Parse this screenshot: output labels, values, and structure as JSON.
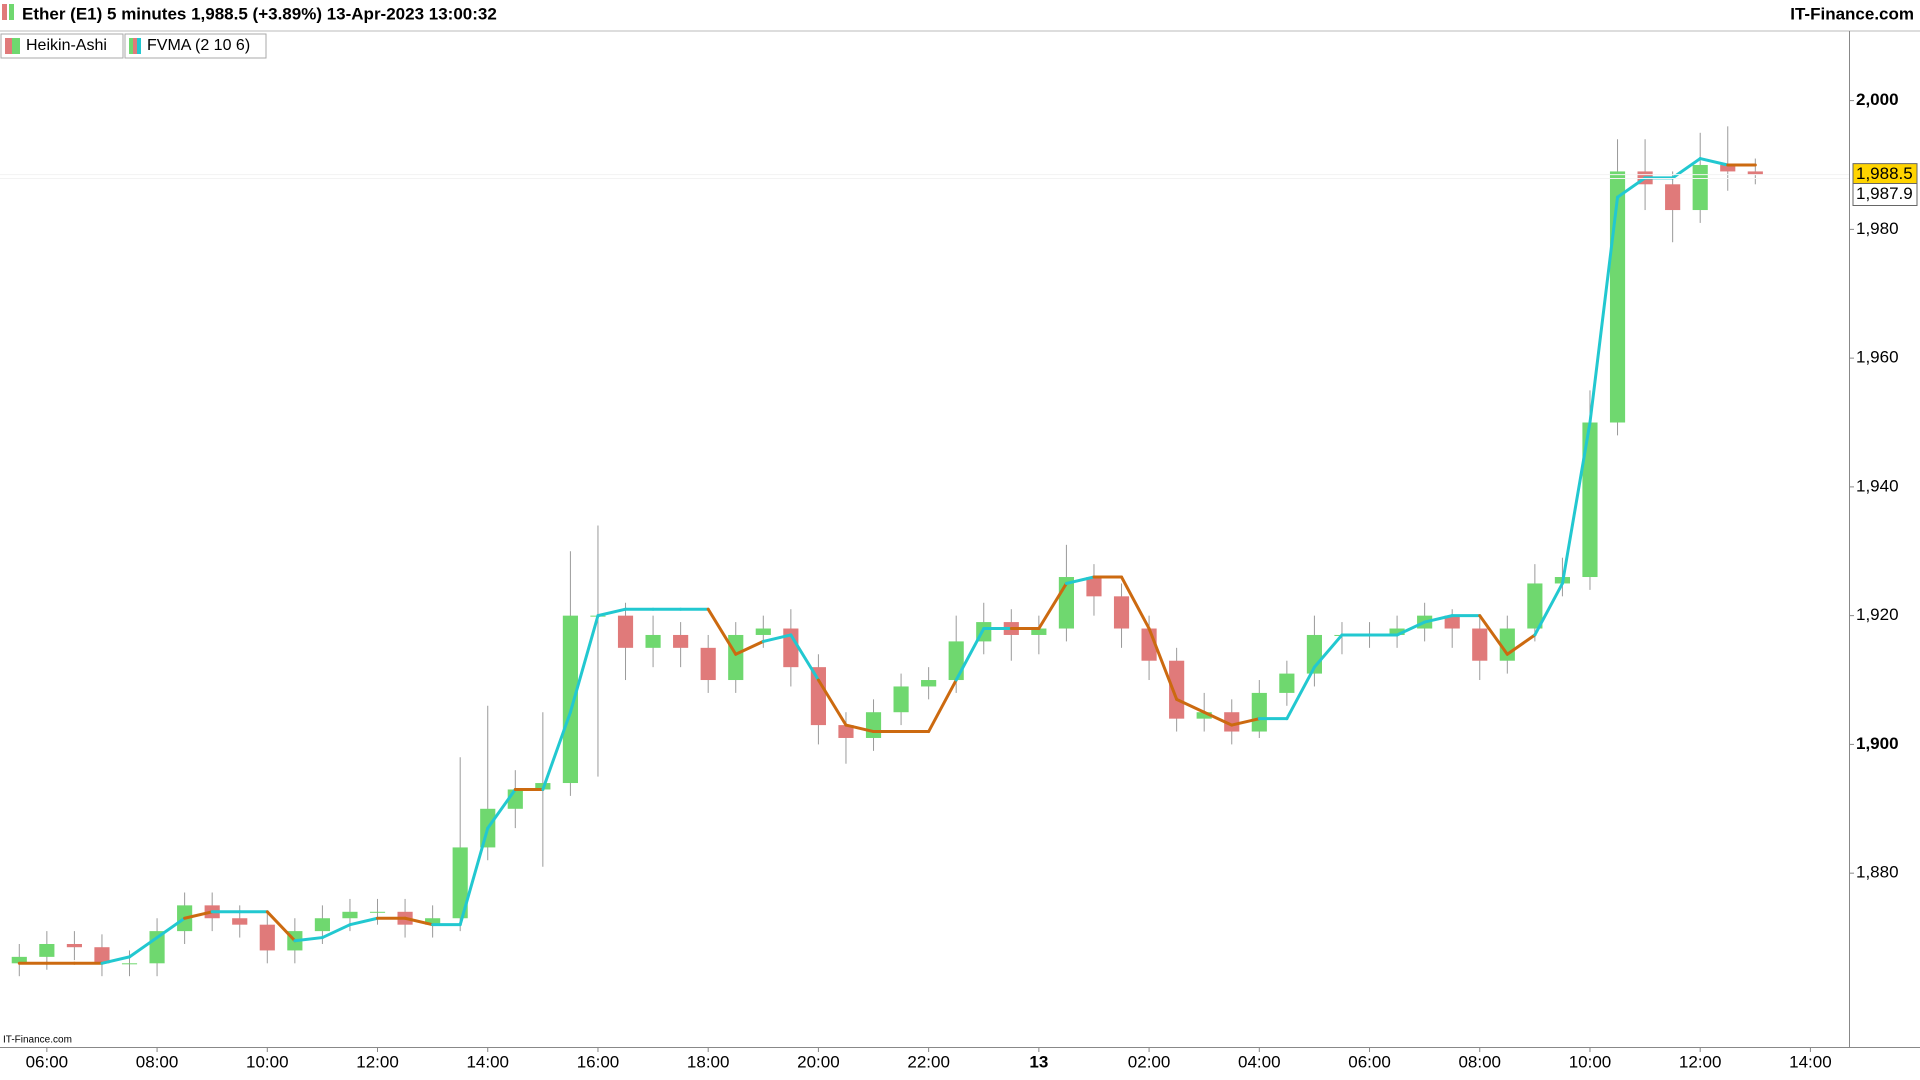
{
  "chart_data": {
    "type": "candlestick",
    "title": "Ether (E1) 5 minutes 1,988.5 (+3.89%) 13-Apr-2023 13:00:32",
    "source": "IT-Finance.com",
    "watermark": "IT-Finance.com",
    "name": "Heikin-Ashi",
    "up_color": "#6fd86f",
    "down_color": "#e07a7a",
    "x": [
      5.5,
      6,
      6.5,
      7,
      7.5,
      8,
      8.5,
      9,
      9.5,
      10,
      10.5,
      11,
      11.5,
      12,
      12.5,
      13,
      13.5,
      14,
      14.5,
      15,
      15.5,
      16,
      16.5,
      17,
      17.5,
      18,
      18.5,
      19,
      19.5,
      20,
      20.5,
      21,
      21.5,
      22,
      22.5,
      23,
      23.5,
      24,
      24.5,
      25,
      25.5,
      26,
      26.5,
      27,
      27.5,
      28,
      28.5,
      29,
      29.5,
      30,
      30.5,
      31,
      31.5,
      32,
      32.5,
      33,
      33.5,
      34,
      34.5,
      35,
      35.5,
      36,
      36.5,
      37
    ],
    "open": [
      1866,
      1867,
      1869,
      1868.5,
      1866,
      1866,
      1871,
      1875,
      1873,
      1872,
      1868,
      1871,
      1873,
      1874,
      1874,
      1872,
      1873,
      1884,
      1890,
      1893,
      1894,
      1920,
      1920,
      1915,
      1917,
      1915,
      1910,
      1917,
      1918,
      1912,
      1903,
      1901,
      1905,
      1909,
      1910,
      1916,
      1919,
      1917,
      1918,
      1926,
      1923,
      1918,
      1913,
      1904,
      1905,
      1902,
      1908,
      1911,
      1917,
      1917,
      1917,
      1918,
      1920,
      1918,
      1913,
      1918,
      1925,
      1926,
      1950,
      1989,
      1987,
      1983,
      1990,
      1989
    ],
    "high": [
      1869,
      1871,
      1871,
      1870.5,
      1868,
      1873,
      1877,
      1877,
      1875,
      1874,
      1873,
      1875,
      1876,
      1876,
      1876,
      1875,
      1898,
      1906,
      1896,
      1905,
      1930,
      1934,
      1922,
      1920,
      1919,
      1917,
      1919,
      1920,
      1921,
      1914,
      1905,
      1907,
      1911,
      1912,
      1920,
      1922,
      1921,
      1920,
      1931,
      1928,
      1925,
      1920,
      1915,
      1908,
      1907,
      1910,
      1913,
      1920,
      1919,
      1919,
      1920,
      1922,
      1921,
      1920,
      1920,
      1928,
      1929,
      1955,
      1994,
      1994,
      1989,
      1995,
      1996,
      1991
    ],
    "low": [
      1864,
      1865,
      1866.5,
      1864,
      1864,
      1864,
      1869,
      1871,
      1870,
      1866,
      1866,
      1869,
      1871,
      1872,
      1870,
      1870,
      1871,
      1882,
      1887,
      1881,
      1892,
      1895,
      1910,
      1912,
      1912,
      1908,
      1908,
      1915,
      1909,
      1900,
      1897,
      1899,
      1903,
      1907,
      1908,
      1914,
      1913,
      1914,
      1916,
      1920,
      1915,
      1910,
      1902,
      1902,
      1900,
      1901,
      1906,
      1909,
      1914,
      1915,
      1915,
      1916,
      1915,
      1910,
      1911,
      1916,
      1923,
      1924,
      1948,
      1983,
      1978,
      1981,
      1986,
      1987
    ],
    "close": [
      1867,
      1869,
      1868.5,
      1866,
      1866,
      1871,
      1875,
      1873,
      1872,
      1868,
      1871,
      1873,
      1874,
      1874,
      1872,
      1873,
      1884,
      1890,
      1893,
      1894,
      1920,
      1920,
      1915,
      1917,
      1915,
      1910,
      1917,
      1918,
      1912,
      1903,
      1901,
      1905,
      1909,
      1910,
      1916,
      1919,
      1917,
      1918,
      1926,
      1923,
      1918,
      1913,
      1904,
      1905,
      1902,
      1908,
      1911,
      1917,
      1917,
      1917,
      1918,
      1920,
      1918,
      1913,
      1918,
      1925,
      1926,
      1950,
      1989,
      1987,
      1983,
      1990,
      1989,
      1988.5
    ],
    "overlay": {
      "name": "FVMA (2 10 6)",
      "values": [
        1866,
        1866,
        1866,
        1866,
        1867,
        1870,
        1873,
        1874,
        1874,
        1874,
        1869.5,
        1870,
        1872,
        1873,
        1873,
        1872,
        1872,
        1887,
        1893,
        1893,
        1905,
        1920,
        1921,
        1921,
        1921,
        1921,
        1914,
        1916,
        1917,
        1910,
        1903,
        1902,
        1902,
        1902,
        1910,
        1918,
        1918,
        1918,
        1925,
        1926,
        1926,
        1918,
        1907,
        1905,
        1903,
        1904,
        1904,
        1912,
        1917,
        1917,
        1917,
        1919,
        1920,
        1920,
        1914,
        1917,
        1925,
        1950,
        1985,
        1988,
        1988,
        1991,
        1990,
        1990
      ],
      "colors": [
        "#cc6a10",
        "#cc6a10",
        "#cc6a10",
        "#cc6a10",
        "#22c8d0",
        "#22c8d0",
        "#22c8d0",
        "#cc6a10",
        "#22c8d0",
        "#22c8d0",
        "#cc6a10",
        "#22c8d0",
        "#22c8d0",
        "#22c8d0",
        "#cc6a10",
        "#cc6a10",
        "#22c8d0",
        "#22c8d0",
        "#22c8d0",
        "#cc6a10",
        "#22c8d0",
        "#22c8d0",
        "#22c8d0",
        "#22c8d0",
        "#22c8d0",
        "#22c8d0",
        "#cc6a10",
        "#cc6a10",
        "#22c8d0",
        "#22c8d0",
        "#cc6a10",
        "#cc6a10",
        "#cc6a10",
        "#cc6a10",
        "#cc6a10",
        "#22c8d0",
        "#22c8d0",
        "#cc6a10",
        "#cc6a10",
        "#22c8d0",
        "#cc6a10",
        "#cc6a10",
        "#cc6a10",
        "#cc6a10",
        "#cc6a10",
        "#cc6a10",
        "#22c8d0",
        "#22c8d0",
        "#22c8d0",
        "#22c8d0",
        "#22c8d0",
        "#22c8d0",
        "#22c8d0",
        "#22c8d0",
        "#cc6a10",
        "#cc6a10",
        "#22c8d0",
        "#22c8d0",
        "#22c8d0",
        "#22c8d0",
        "#22c8d0",
        "#22c8d0",
        "#22c8d0",
        "#cc6a10"
      ]
    },
    "xlim": [
      5.15,
      38.7
    ],
    "xticks": [
      {
        "value": 6,
        "label": "06:00"
      },
      {
        "value": 8,
        "label": "08:00"
      },
      {
        "value": 10,
        "label": "10:00"
      },
      {
        "value": 12,
        "label": "12:00"
      },
      {
        "value": 14,
        "label": "14:00"
      },
      {
        "value": 16,
        "label": "16:00"
      },
      {
        "value": 18,
        "label": "18:00"
      },
      {
        "value": 20,
        "label": "20:00"
      },
      {
        "value": 22,
        "label": "22:00"
      },
      {
        "value": 24,
        "label": "13",
        "bold": true
      },
      {
        "value": 26,
        "label": "02:00"
      },
      {
        "value": 28,
        "label": "04:00"
      },
      {
        "value": 30,
        "label": "06:00"
      },
      {
        "value": 32,
        "label": "08:00"
      },
      {
        "value": 34,
        "label": "10:00"
      },
      {
        "value": 36,
        "label": "12:00"
      },
      {
        "value": 38,
        "label": "14:00"
      }
    ],
    "ylim": [
      1853,
      2010.5
    ],
    "yticks": [
      {
        "value": 1880,
        "label": "1,880"
      },
      {
        "value": 1900,
        "label": "1,900"
      },
      {
        "value": 1920,
        "label": "1,920"
      },
      {
        "value": 1940,
        "label": "1,940"
      },
      {
        "value": 1960,
        "label": "1,960"
      },
      {
        "value": 1980,
        "label": "1,980"
      },
      {
        "value": 2000,
        "label": "2,000"
      }
    ],
    "price_labels": [
      {
        "value": 1988.5,
        "label": "1,988.5",
        "color": "#ffd400"
      },
      {
        "value": 1987.9,
        "label": "1,987.9",
        "color": "#ffffff"
      }
    ],
    "grid": false
  }
}
